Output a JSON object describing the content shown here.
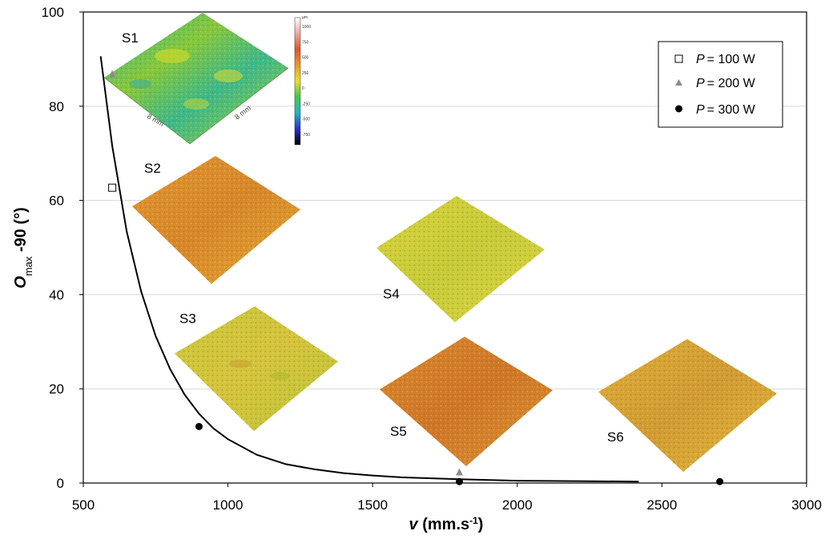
{
  "chart_data": {
    "type": "scatter",
    "xlabel": "v (mm.s-1)",
    "xlabel_parts": {
      "symbol": "v",
      "unit_open": " (mm.s",
      "unit_sup": "-1",
      "unit_close": ")"
    },
    "ylabel_parts": {
      "symbol": "O",
      "sub": "max",
      "rest": " -90 (°)"
    },
    "xlim": [
      500,
      3000
    ],
    "ylim": [
      0,
      100
    ],
    "xticks": [
      500,
      1000,
      1500,
      2000,
      2500,
      3000
    ],
    "yticks": [
      0,
      20,
      40,
      60,
      80,
      100
    ],
    "grid": "horizontal",
    "legend_position": "top-right",
    "series": [
      {
        "name": "P = 100 W",
        "power": "100 W",
        "marker": "open-square",
        "color": "#000000",
        "points": [
          [
            600,
            62.7
          ]
        ]
      },
      {
        "name": "P = 200 W",
        "power": "200 W",
        "marker": "triangle",
        "color": "#8c8c8c",
        "points": [
          [
            600,
            86.8
          ],
          [
            1800,
            2.3
          ]
        ]
      },
      {
        "name": "P = 300 W",
        "power": "300 W",
        "marker": "filled-circle",
        "color": "#000000",
        "points": [
          [
            900,
            12.0
          ],
          [
            1800,
            0.3
          ],
          [
            2700,
            0.3
          ]
        ]
      }
    ],
    "fit_curve": {
      "color": "#000000",
      "points": [
        [
          560,
          90.6
        ],
        [
          600,
          71.6
        ],
        [
          650,
          53.4
        ],
        [
          700,
          40.7
        ],
        [
          750,
          31.2
        ],
        [
          800,
          24.2
        ],
        [
          850,
          18.8
        ],
        [
          900,
          14.7
        ],
        [
          950,
          11.6
        ],
        [
          1000,
          9.3
        ],
        [
          1100,
          6.0
        ],
        [
          1200,
          4.0
        ],
        [
          1300,
          2.9
        ],
        [
          1400,
          2.1
        ],
        [
          1500,
          1.6
        ],
        [
          1600,
          1.2
        ],
        [
          1800,
          0.8
        ],
        [
          2000,
          0.5
        ],
        [
          2200,
          0.4
        ],
        [
          2420,
          0.3
        ]
      ]
    },
    "annotations": [
      "S1",
      "S2",
      "S3",
      "S4",
      "S5",
      "S6"
    ],
    "inset_labels": {
      "edge_1": "8 mm",
      "edge_2": "8 mm",
      "colorbar_unit": "µm"
    },
    "colorbar_ticks": [
      "1000",
      "750",
      "500",
      "250",
      "0",
      "-250",
      "-500",
      "-750"
    ]
  },
  "legend": {
    "entries": [
      {
        "prefix": "P",
        "value": "= 100 W"
      },
      {
        "prefix": "P",
        "value": "= 200 W"
      },
      {
        "prefix": "P",
        "value": "= 300 W"
      }
    ]
  }
}
